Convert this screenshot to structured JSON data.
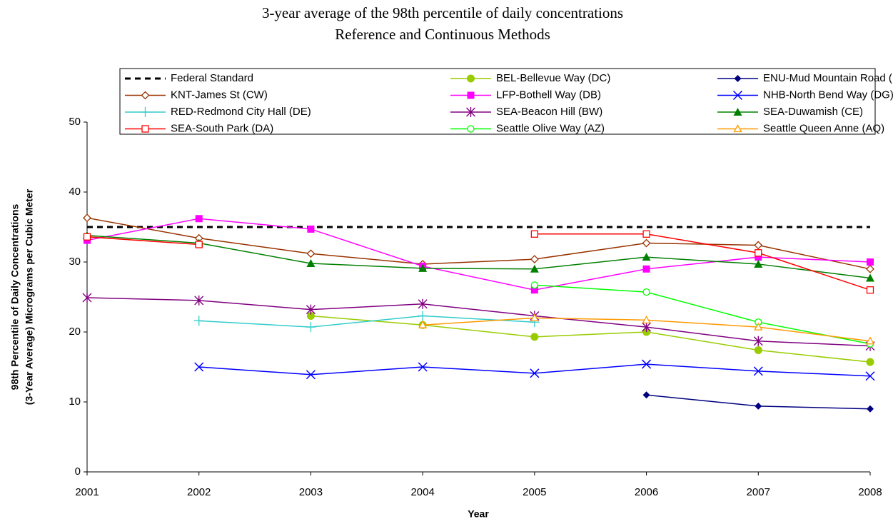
{
  "chart_data": {
    "type": "line",
    "title": "3-year average of the 98th percentile of daily concentrations",
    "subtitle": "Reference and Continuous Methods",
    "xlabel": "Year",
    "ylabel": [
      "98th Percentile of Daily Concentrations",
      "(3-Year Average) Micrograms per Cubic Meter"
    ],
    "x": [
      2001,
      2002,
      2003,
      2004,
      2005,
      2006,
      2007,
      2008
    ],
    "xlim": [
      2001,
      2008
    ],
    "xticks": [
      2001,
      2002,
      2003,
      2004,
      2005,
      2006,
      2007,
      2008
    ],
    "ylim": [
      0,
      50
    ],
    "yticks": [
      0,
      10,
      20,
      30,
      40,
      50
    ],
    "grid": false,
    "legend": "top",
    "series": [
      {
        "name": "Federal Standard",
        "color": "#000000",
        "dash": true,
        "marker": "none",
        "values": [
          35,
          35,
          35,
          35,
          35,
          35,
          35,
          35
        ]
      },
      {
        "name": "BEL-Bellevue Way (DC)",
        "color": "#99cc00",
        "marker": "circle-filled",
        "values": [
          null,
          null,
          22.3,
          21.0,
          19.3,
          20.0,
          17.4,
          15.7
        ]
      },
      {
        "name": "ENU-Mud Mountain Road (DF)",
        "color": "#000080",
        "marker": "diamond-filled",
        "values": [
          null,
          null,
          null,
          null,
          null,
          11.0,
          9.4,
          9.0
        ]
      },
      {
        "name": "KNT-James St (CW)",
        "color": "#993300",
        "marker": "diamond-open",
        "values": [
          36.3,
          33.4,
          31.2,
          29.7,
          30.4,
          32.7,
          32.4,
          29.0
        ]
      },
      {
        "name": "LFP-Bothell Way (DB)",
        "color": "#ff00ff",
        "marker": "square-filled",
        "values": [
          33.1,
          36.2,
          34.7,
          29.4,
          26.0,
          29.0,
          30.7,
          30.0
        ]
      },
      {
        "name": "NHB-North Bend Way (DG)",
        "color": "#0000ff",
        "marker": "x",
        "values": [
          null,
          15.0,
          13.9,
          15.0,
          14.1,
          15.4,
          14.4,
          13.7
        ]
      },
      {
        "name": "RED-Redmond City Hall (DE)",
        "color": "#33cccc",
        "marker": "plus",
        "values": [
          null,
          21.6,
          20.7,
          22.3,
          21.4,
          null,
          null,
          null
        ]
      },
      {
        "name": "SEA-Beacon Hill (BW)",
        "color": "#800080",
        "marker": "star",
        "values": [
          24.9,
          24.5,
          23.2,
          24.0,
          22.3,
          20.7,
          18.7,
          18.0
        ]
      },
      {
        "name": "SEA-Duwamish (CE)",
        "color": "#008000",
        "marker": "triangle-filled",
        "values": [
          33.8,
          32.7,
          29.8,
          29.1,
          29.0,
          30.7,
          29.7,
          27.7
        ]
      },
      {
        "name": "SEA-South Park (DA)",
        "color": "#ff0000",
        "marker": "square-open",
        "values": [
          33.6,
          32.5,
          null,
          null,
          34.0,
          34.0,
          31.3,
          26.0
        ]
      },
      {
        "name": "Seattle Olive Way (AZ)",
        "color": "#00ff00",
        "marker": "circle-open",
        "values": [
          null,
          null,
          null,
          null,
          26.7,
          25.7,
          21.4,
          18.3
        ]
      },
      {
        "name": "Seattle Queen Anne (AQ)",
        "color": "#ff9900",
        "marker": "triangle-open",
        "values": [
          null,
          null,
          null,
          21.0,
          22.0,
          21.7,
          20.7,
          18.7
        ]
      }
    ]
  }
}
